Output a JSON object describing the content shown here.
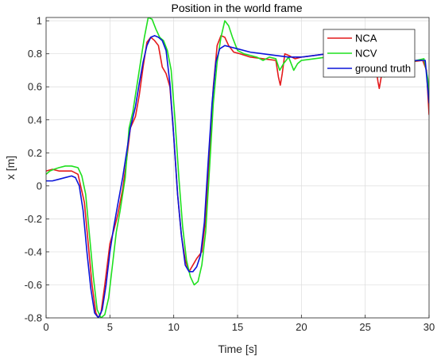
{
  "chart_data": {
    "type": "line",
    "title": "Position in the world frame",
    "xlabel": "Time [s]",
    "ylabel": "x [m]",
    "xlim": [
      0,
      30
    ],
    "ylim": [
      -0.8,
      1.02
    ],
    "x_ticks": [
      0,
      5,
      10,
      15,
      20,
      25,
      30
    ],
    "x_tick_labels": [
      "0",
      "5",
      "10",
      "15",
      "20",
      "25",
      "30"
    ],
    "y_ticks": [
      -0.8,
      -0.6,
      -0.4,
      -0.2,
      0,
      0.2,
      0.4,
      0.6,
      0.8,
      1
    ],
    "y_tick_labels": [
      "-0.8",
      "-0.6",
      "-0.4",
      "-0.2",
      "0",
      "0.2",
      "0.4",
      "0.6",
      "0.8",
      "1"
    ],
    "grid": true,
    "legend_position": "top-right",
    "series": [
      {
        "name": "NCA",
        "color": "#e41a1c",
        "points": [
          [
            0,
            0.09
          ],
          [
            0.5,
            0.1
          ],
          [
            1,
            0.09
          ],
          [
            1.5,
            0.09
          ],
          [
            2,
            0.09
          ],
          [
            2.5,
            0.07
          ],
          [
            3,
            -0.1
          ],
          [
            3.3,
            -0.35
          ],
          [
            3.6,
            -0.6
          ],
          [
            3.9,
            -0.77
          ],
          [
            4.1,
            -0.8
          ],
          [
            4.3,
            -0.77
          ],
          [
            4.6,
            -0.6
          ],
          [
            5,
            -0.35
          ],
          [
            5.3,
            -0.27
          ],
          [
            5.6,
            -0.18
          ],
          [
            6,
            -0.02
          ],
          [
            6.3,
            0.15
          ],
          [
            6.6,
            0.35
          ],
          [
            7,
            0.42
          ],
          [
            7.3,
            0.55
          ],
          [
            7.6,
            0.72
          ],
          [
            7.9,
            0.87
          ],
          [
            8.2,
            0.9
          ],
          [
            8.5,
            0.88
          ],
          [
            8.8,
            0.85
          ],
          [
            9.1,
            0.72
          ],
          [
            9.4,
            0.68
          ],
          [
            9.7,
            0.6
          ],
          [
            10,
            0.3
          ],
          [
            10.3,
            -0.05
          ],
          [
            10.6,
            -0.3
          ],
          [
            10.9,
            -0.45
          ],
          [
            11.2,
            -0.52
          ],
          [
            11.5,
            -0.48
          ],
          [
            11.8,
            -0.44
          ],
          [
            12.2,
            -0.4
          ],
          [
            12.5,
            -0.2
          ],
          [
            12.8,
            0.2
          ],
          [
            13.1,
            0.6
          ],
          [
            13.4,
            0.85
          ],
          [
            13.7,
            0.91
          ],
          [
            14,
            0.9
          ],
          [
            14.3,
            0.85
          ],
          [
            14.7,
            0.81
          ],
          [
            15.2,
            0.8
          ],
          [
            16,
            0.78
          ],
          [
            17,
            0.77
          ],
          [
            18,
            0.76
          ],
          [
            18.2,
            0.66
          ],
          [
            18.35,
            0.61
          ],
          [
            18.5,
            0.68
          ],
          [
            18.7,
            0.8
          ],
          [
            19,
            0.79
          ],
          [
            19.5,
            0.77
          ],
          [
            20,
            0.78
          ],
          [
            21,
            0.79
          ],
          [
            22,
            0.8
          ],
          [
            23,
            0.79
          ],
          [
            24,
            0.78
          ],
          [
            25,
            0.76
          ],
          [
            25.8,
            0.74
          ],
          [
            26,
            0.63
          ],
          [
            26.1,
            0.59
          ],
          [
            26.3,
            0.68
          ],
          [
            26.6,
            0.72
          ],
          [
            27.5,
            0.74
          ],
          [
            28.5,
            0.75
          ],
          [
            29.5,
            0.76
          ],
          [
            29.8,
            0.7
          ],
          [
            30,
            0.43
          ]
        ]
      },
      {
        "name": "NCV",
        "color": "#1fe01f",
        "points": [
          [
            0,
            0.07
          ],
          [
            0.3,
            0.09
          ],
          [
            0.6,
            0.1
          ],
          [
            1,
            0.11
          ],
          [
            1.5,
            0.12
          ],
          [
            2,
            0.12
          ],
          [
            2.5,
            0.11
          ],
          [
            2.8,
            0.06
          ],
          [
            3.1,
            -0.05
          ],
          [
            3.4,
            -0.3
          ],
          [
            3.7,
            -0.55
          ],
          [
            4,
            -0.75
          ],
          [
            4.3,
            -0.8
          ],
          [
            4.6,
            -0.78
          ],
          [
            4.9,
            -0.68
          ],
          [
            5.2,
            -0.48
          ],
          [
            5.5,
            -0.28
          ],
          [
            5.8,
            -0.15
          ],
          [
            6.2,
            0.05
          ],
          [
            6.5,
            0.35
          ],
          [
            6.8,
            0.45
          ],
          [
            7.1,
            0.6
          ],
          [
            7.4,
            0.75
          ],
          [
            7.7,
            0.9
          ],
          [
            8,
            1.02
          ],
          [
            8.3,
            1.01
          ],
          [
            8.6,
            0.95
          ],
          [
            8.9,
            0.9
          ],
          [
            9.2,
            0.88
          ],
          [
            9.5,
            0.82
          ],
          [
            9.8,
            0.7
          ],
          [
            10.1,
            0.4
          ],
          [
            10.4,
            0.05
          ],
          [
            10.7,
            -0.25
          ],
          [
            11,
            -0.45
          ],
          [
            11.3,
            -0.55
          ],
          [
            11.6,
            -0.6
          ],
          [
            11.9,
            -0.58
          ],
          [
            12.2,
            -0.48
          ],
          [
            12.5,
            -0.28
          ],
          [
            12.8,
            0.1
          ],
          [
            13.1,
            0.5
          ],
          [
            13.4,
            0.75
          ],
          [
            13.7,
            0.9
          ],
          [
            14,
            1.0
          ],
          [
            14.3,
            0.97
          ],
          [
            14.6,
            0.9
          ],
          [
            15,
            0.82
          ],
          [
            15.5,
            0.8
          ],
          [
            16,
            0.79
          ],
          [
            16.5,
            0.78
          ],
          [
            17,
            0.76
          ],
          [
            17.5,
            0.78
          ],
          [
            18,
            0.77
          ],
          [
            18.3,
            0.7
          ],
          [
            18.6,
            0.74
          ],
          [
            19,
            0.78
          ],
          [
            19.4,
            0.7
          ],
          [
            19.7,
            0.74
          ],
          [
            20,
            0.76
          ],
          [
            21,
            0.77
          ],
          [
            22,
            0.78
          ],
          [
            23,
            0.77
          ],
          [
            24,
            0.76
          ],
          [
            25,
            0.74
          ],
          [
            26,
            0.7
          ],
          [
            26.5,
            0.66
          ],
          [
            27,
            0.7
          ],
          [
            28,
            0.72
          ],
          [
            29,
            0.76
          ],
          [
            29.6,
            0.77
          ],
          [
            29.9,
            0.65
          ],
          [
            30,
            0.55
          ]
        ]
      },
      {
        "name": "ground truth",
        "color": "#0a14d9",
        "points": [
          [
            0,
            0.03
          ],
          [
            0.5,
            0.03
          ],
          [
            1,
            0.04
          ],
          [
            1.5,
            0.05
          ],
          [
            2,
            0.06
          ],
          [
            2.3,
            0.05
          ],
          [
            2.6,
            0.0
          ],
          [
            2.9,
            -0.15
          ],
          [
            3.2,
            -0.4
          ],
          [
            3.5,
            -0.62
          ],
          [
            3.8,
            -0.77
          ],
          [
            4.1,
            -0.8
          ],
          [
            4.4,
            -0.75
          ],
          [
            4.7,
            -0.6
          ],
          [
            5,
            -0.4
          ],
          [
            5.3,
            -0.25
          ],
          [
            5.6,
            -0.12
          ],
          [
            6,
            0.05
          ],
          [
            6.3,
            0.2
          ],
          [
            6.6,
            0.35
          ],
          [
            7,
            0.48
          ],
          [
            7.3,
            0.62
          ],
          [
            7.6,
            0.75
          ],
          [
            7.9,
            0.85
          ],
          [
            8.2,
            0.9
          ],
          [
            8.5,
            0.91
          ],
          [
            8.8,
            0.9
          ],
          [
            9.1,
            0.88
          ],
          [
            9.4,
            0.82
          ],
          [
            9.7,
            0.62
          ],
          [
            10,
            0.3
          ],
          [
            10.3,
            -0.05
          ],
          [
            10.6,
            -0.3
          ],
          [
            10.9,
            -0.48
          ],
          [
            11.2,
            -0.52
          ],
          [
            11.5,
            -0.52
          ],
          [
            11.8,
            -0.49
          ],
          [
            12.1,
            -0.42
          ],
          [
            12.4,
            -0.22
          ],
          [
            12.7,
            0.15
          ],
          [
            13,
            0.5
          ],
          [
            13.3,
            0.75
          ],
          [
            13.6,
            0.83
          ],
          [
            14,
            0.85
          ],
          [
            14.5,
            0.84
          ],
          [
            15,
            0.83
          ],
          [
            16,
            0.81
          ],
          [
            17,
            0.8
          ],
          [
            18,
            0.79
          ],
          [
            19,
            0.78
          ],
          [
            20,
            0.78
          ],
          [
            21,
            0.79
          ],
          [
            22,
            0.8
          ],
          [
            23,
            0.8
          ],
          [
            24,
            0.78
          ],
          [
            25,
            0.77
          ],
          [
            26,
            0.74
          ],
          [
            27,
            0.73
          ],
          [
            28,
            0.74
          ],
          [
            29,
            0.76
          ],
          [
            29.7,
            0.76
          ],
          [
            30,
            0.5
          ]
        ]
      }
    ]
  }
}
